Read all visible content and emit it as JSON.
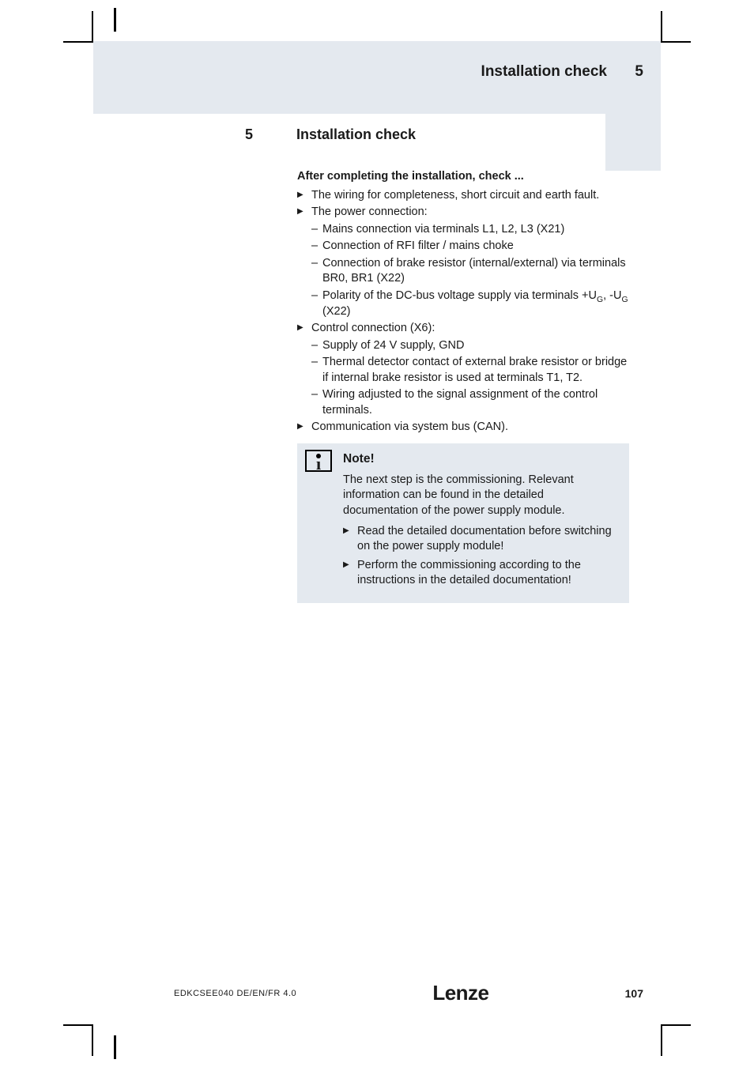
{
  "header": {
    "title": "Installation check",
    "chapter": "5"
  },
  "section": {
    "number": "5",
    "title": "Installation check"
  },
  "subheading": "After completing the installation, check ...",
  "checklist": {
    "item1": "The wiring for completeness, short circuit and earth fault.",
    "item2": "The power connection:",
    "item2_sub1": "Mains connection via terminals L1, L2, L3 (X21)",
    "item2_sub2": "Connection of RFI filter / mains choke",
    "item2_sub3": "Connection of brake resistor (internal/external) via terminals BR0, BR1 (X22)",
    "item2_sub4_a": "Polarity of the DC-bus voltage supply via terminals +U",
    "item2_sub4_b": ", -U",
    "item2_sub4_c": " (X22)",
    "item3": "Control connection (X6):",
    "item3_sub1": "Supply of 24 V supply, GND",
    "item3_sub2": "Thermal detector contact of external brake resistor or bridge if internal brake resistor is used at terminals T1, T2.",
    "item3_sub3": "Wiring adjusted to the signal assignment of the control terminals.",
    "item4": "Communication via system bus (CAN)."
  },
  "note": {
    "title": "Note!",
    "para": "The next step is the commissioning. Relevant information can be found in the detailed documentation of the power supply module.",
    "bullet1": "Read the detailed documentation before switching on the power supply module!",
    "bullet2": "Perform the commissioning according to the instructions in the detailed documentation!"
  },
  "footer": {
    "docid": "EDKCSEE040  DE/EN/FR  4.0",
    "logo": "Lenze",
    "page": "107"
  },
  "subscript": "G"
}
